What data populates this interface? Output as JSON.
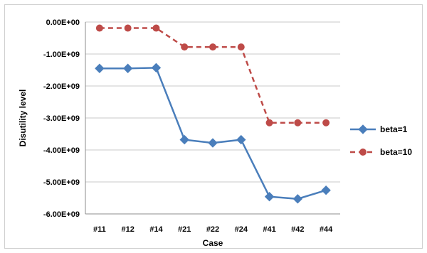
{
  "chart_data": {
    "type": "line",
    "title": "",
    "xlabel": "Case",
    "ylabel": "Disutility level",
    "categories": [
      "#11",
      "#12",
      "#14",
      "#21",
      "#22",
      "#24",
      "#41",
      "#42",
      "#44"
    ],
    "ylim": [
      -6000000000,
      0
    ],
    "yticks": [
      0,
      -1000000000,
      -2000000000,
      -3000000000,
      -4000000000,
      -5000000000,
      -6000000000
    ],
    "ytick_labels": [
      "0.00E+00",
      "-1.00E+09",
      "-2.00E+09",
      "-3.00E+09",
      "-4.00E+09",
      "-5.00E+09",
      "-6.00E+09"
    ],
    "grid": true,
    "legend_position": "right",
    "series": [
      {
        "name": "beta=1",
        "color": "#4a7ebb",
        "marker": "diamond",
        "line_style": "solid",
        "values": [
          -1450000000,
          -1450000000,
          -1430000000,
          -3680000000,
          -3780000000,
          -3680000000,
          -5460000000,
          -5530000000,
          -5260000000
        ]
      },
      {
        "name": "beta=10",
        "color": "#be4b48",
        "marker": "circle",
        "line_style": "dashed",
        "values": [
          -190000000,
          -190000000,
          -190000000,
          -780000000,
          -780000000,
          -780000000,
          -3150000000,
          -3150000000,
          -3150000000
        ]
      }
    ]
  }
}
